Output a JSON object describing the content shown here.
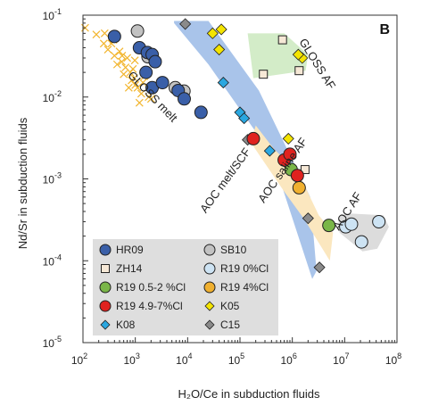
{
  "chart_data": {
    "type": "scatter",
    "panel_label": "B",
    "xlabel": "H₂O/Ce in subduction fluids",
    "ylabel": "Nd/Sr in subduction fluids",
    "xscale": "log",
    "yscale": "log",
    "xlim": [
      100,
      100000000
    ],
    "ylim": [
      1e-05,
      0.1
    ],
    "x_ticks": [
      {
        "value": 100,
        "base": "10",
        "exp": "2"
      },
      {
        "value": 1000,
        "base": "10",
        "exp": "3"
      },
      {
        "value": 10000,
        "base": "10",
        "exp": "4"
      },
      {
        "value": 100000,
        "base": "10",
        "exp": "5"
      },
      {
        "value": 1000000,
        "base": "10",
        "exp": "6"
      },
      {
        "value": 10000000,
        "base": "10",
        "exp": "7"
      },
      {
        "value": 100000000,
        "base": "10",
        "exp": "8"
      }
    ],
    "y_ticks": [
      {
        "value": 1e-05,
        "base": "10",
        "exp": "-5"
      },
      {
        "value": 0.0001,
        "base": "10",
        "exp": "-4"
      },
      {
        "value": 0.001,
        "base": "10",
        "exp": "-3"
      },
      {
        "value": 0.01,
        "base": "10",
        "exp": "-2"
      },
      {
        "value": 0.1,
        "base": "10",
        "exp": "-1"
      }
    ],
    "regions": [
      {
        "name": "AOC melt/SCF",
        "color": "#a9c4ea",
        "polygon": [
          [
            5500,
            0.085
          ],
          [
            25000,
            0.085
          ],
          [
            230000,
            0.012
          ],
          [
            2200000,
            0.0006
          ],
          [
            2900000,
            7.5e-05
          ],
          [
            2400000,
            6e-05
          ],
          [
            400000,
            0.002
          ],
          [
            25000,
            0.025
          ],
          [
            5500,
            0.08
          ]
        ],
        "label_pos": [
          60000,
          0.0009
        ],
        "label_angle": -54
      },
      {
        "name": "AOC saline AF",
        "color": "#fbe7bf",
        "polygon": [
          [
            200000,
            0.0045
          ],
          [
            450000,
            0.0023
          ],
          [
            1300000,
            0.0012
          ],
          [
            3200000,
            0.00036
          ],
          [
            6000000,
            0.00022
          ],
          [
            5200000,
            0.0001
          ],
          [
            1700000,
            0.00032
          ],
          [
            700000,
            0.0007
          ],
          [
            160000,
            0.0028
          ]
        ],
        "label_pos": [
          750000,
          0.0012
        ],
        "label_angle": -55
      },
      {
        "name": "GLOSS AF",
        "color": "#d3ecc8",
        "polygon": [
          [
            140000,
            0.06
          ],
          [
            700000,
            0.06
          ],
          [
            2000000,
            0.033
          ],
          [
            1800000,
            0.021
          ],
          [
            180000,
            0.017
          ]
        ],
        "label_pos": [
          2600000,
          0.024
        ],
        "label_angle": 58
      },
      {
        "name": "AOC AF",
        "color": "#dcdcdc",
        "polygon": [
          [
            7500000,
            0.00034
          ],
          [
            11000000,
            0.00038
          ],
          [
            55000000,
            0.00036
          ],
          [
            70000000,
            0.00026
          ],
          [
            42000000,
            0.00014
          ],
          [
            22000000,
            0.00013
          ],
          [
            8000000,
            0.00022
          ]
        ],
        "label_pos": [
          13000000,
          0.00038
        ],
        "label_angle": -57
      },
      {
        "name": "GLOSS melt",
        "color": null,
        "polygon": null,
        "label_pos": [
          1900,
          0.0094
        ],
        "label_angle": 46
      }
    ],
    "series": [
      {
        "name": "HR09",
        "marker": "circle",
        "fill": "#3a5fa8",
        "stroke": "#222",
        "size": 7,
        "points": [
          [
            400,
            0.055
          ],
          [
            1200,
            0.04
          ],
          [
            1700,
            0.035
          ],
          [
            2100,
            0.033
          ],
          [
            2400,
            0.027
          ],
          [
            1600,
            0.02
          ],
          [
            2100,
            0.013
          ],
          [
            3300,
            0.015
          ],
          [
            6600,
            0.012
          ],
          [
            8600,
            0.0095
          ],
          [
            18000,
            0.0065
          ]
        ]
      },
      {
        "name": "SB10",
        "marker": "circle",
        "fill": "#c2c2c2",
        "stroke": "#222",
        "size": 7,
        "points": [
          [
            1100,
            0.064
          ],
          [
            1750,
            0.031
          ],
          [
            5800,
            0.013
          ],
          [
            8500,
            0.0118
          ]
        ]
      },
      {
        "name": "ZH14",
        "marker": "square",
        "fill": "#f6e8d6",
        "stroke": "#222",
        "size": 9,
        "points": [
          [
            650000,
            0.05
          ],
          [
            280000,
            0.019
          ],
          [
            1350000,
            0.021
          ],
          [
            1750000,
            0.0013
          ]
        ]
      },
      {
        "name": "R19 0%Cl",
        "marker": "circle",
        "fill": "#cde3f3",
        "stroke": "#222",
        "size": 7,
        "points": [
          [
            10500000,
            0.00026
          ],
          [
            13500000,
            0.00028
          ],
          [
            21000000,
            0.00017
          ],
          [
            45000000,
            0.0003
          ]
        ]
      },
      {
        "name": "R19 0.5-2 %Cl",
        "marker": "circle",
        "fill": "#7ab648",
        "stroke": "#222",
        "size": 7,
        "points": [
          [
            950000,
            0.0013
          ],
          [
            5000000,
            0.00027
          ]
        ]
      },
      {
        "name": "R19 4%Cl",
        "marker": "circle",
        "fill": "#f0b030",
        "stroke": "#222",
        "size": 7,
        "points": [
          [
            1350000,
            0.00078
          ]
        ]
      },
      {
        "name": "R19 4.9-7%Cl",
        "marker": "circle",
        "fill": "#e0221f",
        "stroke": "#222",
        "size": 7,
        "points": [
          [
            180000,
            0.0031
          ],
          [
            700000,
            0.0017
          ],
          [
            900000,
            0.002
          ],
          [
            1250000,
            0.0011
          ]
        ]
      },
      {
        "name": "K05",
        "marker": "diamond",
        "fill": "#f4e400",
        "stroke": "#222",
        "size": 6,
        "points": [
          [
            30000,
            0.06
          ],
          [
            44000,
            0.067
          ],
          [
            40000,
            0.038
          ],
          [
            840000,
            0.0031
          ],
          [
            1550000,
            0.03
          ],
          [
            1300000,
            0.033
          ]
        ]
      },
      {
        "name": "K08",
        "marker": "diamond",
        "fill": "#2aa7e0",
        "stroke": "#222",
        "size": 6,
        "points": [
          [
            48000,
            0.015
          ],
          [
            100000,
            0.0065
          ],
          [
            120000,
            0.0055
          ],
          [
            370000,
            0.0022
          ]
        ]
      },
      {
        "name": "C15",
        "marker": "diamond",
        "fill": "#8a8a8a",
        "stroke": "#222",
        "size": 6,
        "points": [
          [
            9000,
            0.078
          ],
          [
            140000,
            0.003
          ],
          [
            2000000,
            0.00033
          ],
          [
            3300000,
            8.3e-05
          ]
        ]
      },
      {
        "name": "GLOSS melt",
        "marker": "x",
        "fill": "none",
        "stroke": "#f2b52e",
        "size": 4,
        "in_legend": false,
        "points": [
          [
            110,
            0.07
          ],
          [
            180,
            0.058
          ],
          [
            250,
            0.045
          ],
          [
            300,
            0.038
          ],
          [
            350,
            0.045
          ],
          [
            400,
            0.032
          ],
          [
            500,
            0.036
          ],
          [
            550,
            0.027
          ],
          [
            650,
            0.023
          ],
          [
            700,
            0.03
          ],
          [
            800,
            0.02
          ],
          [
            900,
            0.022
          ],
          [
            950,
            0.017
          ],
          [
            1000,
            0.014
          ],
          [
            1100,
            0.013
          ],
          [
            1300,
            0.011
          ],
          [
            1400,
            0.015
          ],
          [
            1500,
            0.018
          ],
          [
            1800,
            0.01
          ],
          [
            600,
            0.019
          ],
          [
            850,
            0.016
          ],
          [
            450,
            0.025
          ],
          [
            750,
            0.013
          ],
          [
            1200,
            0.0085
          ],
          [
            2000,
            0.0095
          ],
          [
            380,
            0.05
          ],
          [
            260,
            0.06
          ],
          [
            560,
            0.032
          ],
          [
            980,
            0.028
          ],
          [
            1600,
            0.02
          ]
        ]
      }
    ],
    "legend": {
      "placement": "bottom-left",
      "entries": [
        "HR09",
        "SB10",
        "ZH14",
        "R19 0%Cl",
        "R19 0.5-2 %Cl",
        "R19 4%Cl",
        "R19 4.9-7%Cl",
        "K05",
        "K08",
        "C15"
      ]
    }
  }
}
